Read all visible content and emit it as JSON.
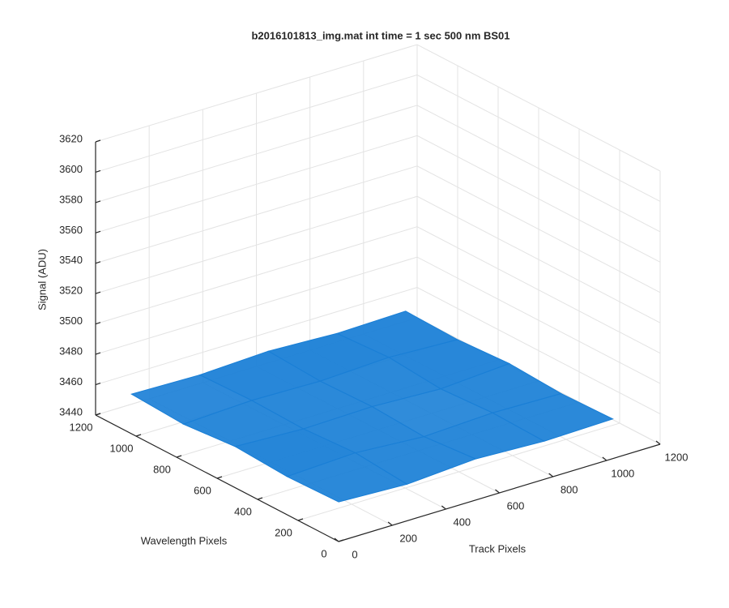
{
  "chart_data": {
    "type": "surface",
    "title": "b2016101813_img.mat int time = 1 sec  500 nm BS01",
    "xlabel": "Track Pixels",
    "ylabel": "Wavelength Pixels",
    "zlabel": "Signal (ADU)",
    "x": [
      1,
      256,
      512,
      768,
      1024
    ],
    "y": [
      1,
      256,
      512,
      768,
      1024
    ],
    "z": [
      [
        3466,
        3464,
        3467,
        3465,
        3466
      ],
      [
        3465,
        3467,
        3464,
        3466,
        3465
      ],
      [
        3467,
        3465,
        3466,
        3464,
        3467
      ],
      [
        3464,
        3466,
        3465,
        3467,
        3465
      ],
      [
        3466,
        3465,
        3467,
        3465,
        3466
      ]
    ],
    "color": "#1a7fd6",
    "xlim": [
      0,
      1200
    ],
    "ylim": [
      0,
      1200
    ],
    "zlim": [
      3440,
      3620
    ],
    "xticks": [
      0,
      200,
      400,
      600,
      800,
      1000,
      1200
    ],
    "yticks": [
      0,
      200,
      400,
      600,
      800,
      1000,
      1200
    ],
    "zticks": [
      3440,
      3460,
      3480,
      3500,
      3520,
      3540,
      3560,
      3580,
      3600,
      3620
    ],
    "grid": true
  }
}
